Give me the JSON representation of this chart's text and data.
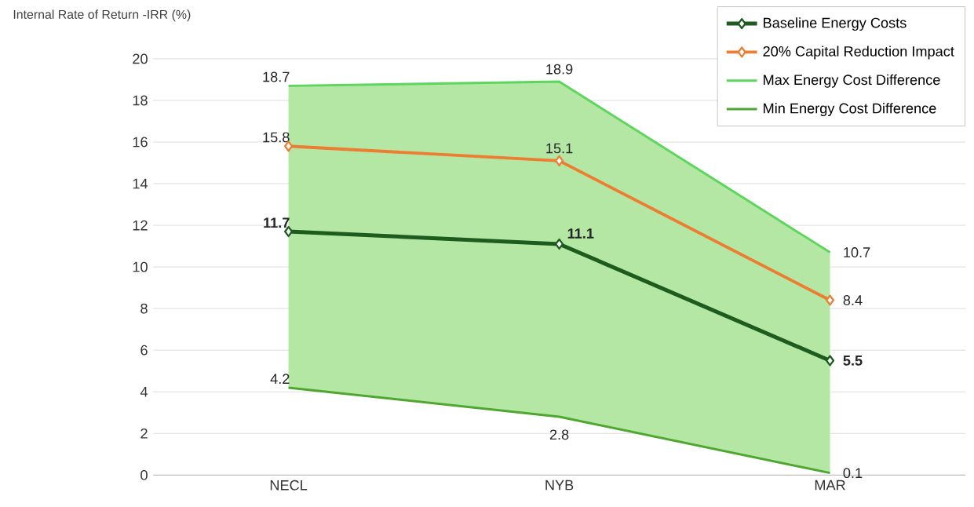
{
  "chart_data": {
    "type": "line",
    "ylabel": "Internal Rate of Return -IRR (%)",
    "categories": [
      "NECL",
      "NYB",
      "MAR"
    ],
    "series": [
      {
        "name": "Baseline Energy Costs",
        "color": "#1e5b1e",
        "values": [
          11.7,
          11.1,
          5.5
        ],
        "marker": "diamond",
        "lower": [
          4.2,
          2.8,
          0.1
        ],
        "upper": [
          18.7,
          18.9,
          10.7
        ]
      },
      {
        "name": "20% Capital Reduction Impact",
        "color": "#ed7d31",
        "values": [
          15.8,
          15.1,
          8.4
        ],
        "marker": "diamond"
      },
      {
        "name": "Max Energy Cost Difference",
        "color": "#5cd65c",
        "values": [
          18.7,
          18.9,
          10.7
        ],
        "marker": "none"
      },
      {
        "name": "Min Energy Cost Difference",
        "color": "#4ea72e",
        "values": [
          4.2,
          2.8,
          0.1
        ],
        "marker": "none"
      }
    ],
    "ylim": [
      0,
      20
    ],
    "yticks": [
      0,
      2,
      4,
      6,
      8,
      10,
      12,
      14,
      16,
      18,
      20
    ],
    "grid": "y",
    "legend": "top right",
    "data_labels": true
  }
}
